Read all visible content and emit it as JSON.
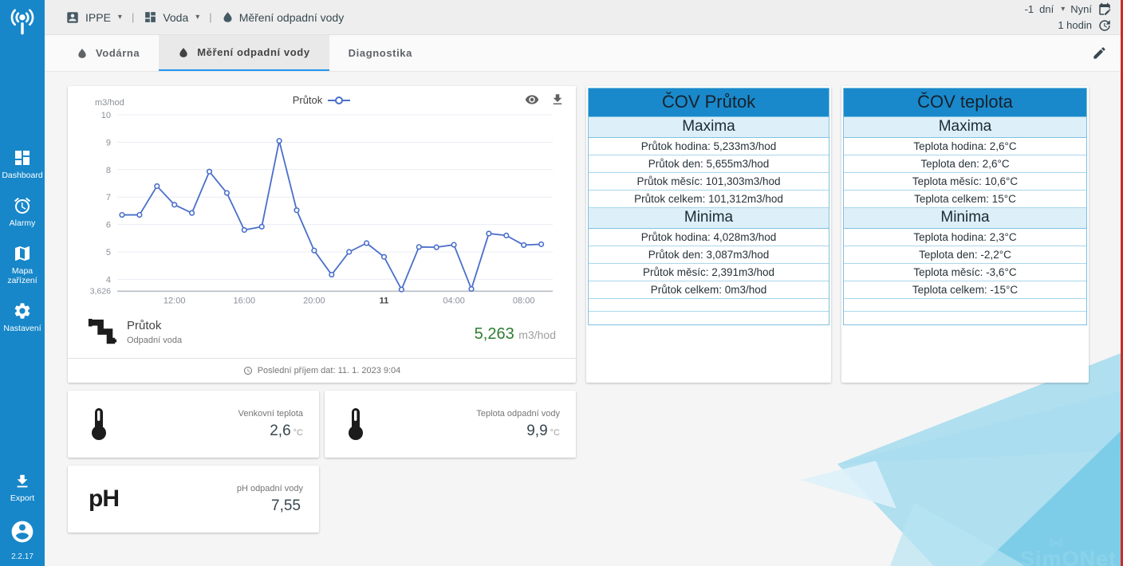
{
  "topbar": {
    "org": "IPPE",
    "group": "Voda",
    "page": "Měření odpadní vody",
    "separator": "|",
    "offset_value": "-1",
    "offset_unit": "dní",
    "now_label": "Nyní",
    "interval_label": "1 hodin"
  },
  "tabs": [
    {
      "label": "Vodárna",
      "active": false
    },
    {
      "label": "Měření odpadní vody",
      "active": true
    },
    {
      "label": "Diagnostika",
      "active": false
    }
  ],
  "sidebar": {
    "items": [
      {
        "label": "Dashboard"
      },
      {
        "label": "Alarmy"
      },
      {
        "label": "Mapa zařízení"
      },
      {
        "label": "Nastavení"
      }
    ],
    "export_label": "Export",
    "version": "2.2.17"
  },
  "chart_card": {
    "unit_label": "m3/hod",
    "legend_label": "Průtok",
    "sensor": {
      "name": "Průtok",
      "location": "Odpadní voda",
      "value": "5,263",
      "unit": "m3/hod"
    },
    "last_data_label": "Poslední příjem dat: 11. 1. 2023 9:04"
  },
  "chart_data": {
    "type": "line",
    "title": "",
    "ylabel": "m3/hod",
    "ylim": [
      3.626,
      10
    ],
    "y_ticks": [
      10,
      9,
      8,
      7,
      6,
      5,
      4
    ],
    "y_min_label": "3,626",
    "x_tick_positions": [
      3,
      7,
      11,
      15,
      19,
      23
    ],
    "x_tick_labels": [
      "12:00",
      "16:00",
      "20:00",
      "11",
      "04:00",
      "08:00"
    ],
    "grid": "horizontal-only",
    "legend_position": "top-center",
    "series": [
      {
        "name": "Průtok",
        "values": [
          6.35,
          6.35,
          7.4,
          6.72,
          6.42,
          7.93,
          7.15,
          5.8,
          5.92,
          9.05,
          6.52,
          5.05,
          4.17,
          5.0,
          5.32,
          4.82,
          3.63,
          5.18,
          5.17,
          5.26,
          3.65,
          5.67,
          5.6,
          5.25,
          5.28
        ]
      }
    ],
    "line_color": "#4a6fca"
  },
  "tables": [
    {
      "title": "ČOV Průtok",
      "empty_rows": 2,
      "sections": [
        {
          "header": "Maxima",
          "rows": [
            "Průtok hodina: 5,233m3/hod",
            "Průtok den: 5,655m3/hod",
            "Průtok měsíc: 101,303m3/hod",
            "Průtok celkem: 101,312m3/hod"
          ]
        },
        {
          "header": "Minima",
          "rows": [
            "Průtok hodina: 4,028m3/hod",
            "Průtok den: 3,087m3/hod",
            "Průtok měsíc: 2,391m3/hod",
            "Průtok celkem: 0m3/hod"
          ]
        }
      ]
    },
    {
      "title": "ČOV teplota",
      "empty_rows": 2,
      "sections": [
        {
          "header": "Maxima",
          "rows": [
            "Teplota hodina: 2,6°C",
            "Teplota den: 2,6°C",
            "Teplota měsíc: 10,6°C",
            "Teplota celkem: 15°C"
          ]
        },
        {
          "header": "Minima",
          "rows": [
            "Teplota hodina: 2,3°C",
            "Teplota den: -2,2°C",
            "Teplota měsíc: -3,6°C",
            "Teplota celkem: -15°C"
          ]
        }
      ]
    }
  ],
  "sensor_cards": [
    {
      "label": "Venkovní teplota",
      "value": "2,6",
      "unit": "°C"
    },
    {
      "label": "Teplota odpadní vody",
      "value": "9,9",
      "unit": "°C"
    },
    {
      "label": "pH odpadní vody",
      "value": "7,55",
      "unit": ""
    }
  ],
  "watermark": "SimONet",
  "colors": {
    "sidebar": "#1787c9",
    "table_header": "#1989cb",
    "table_section": "#ddeff8",
    "table_border": "#7fc0e0",
    "chart_line": "#4a6fca",
    "value_green": "#2e7d32",
    "tab_underline": "#2196f3",
    "screen_edge": "#cd2a26"
  }
}
